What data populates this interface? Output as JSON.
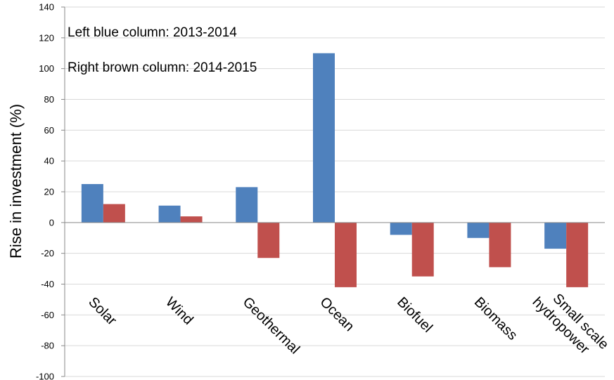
{
  "chart_data": {
    "type": "bar",
    "title": "",
    "xlabel": "",
    "ylabel": "Rise in investment (%)",
    "ylim": [
      -100,
      140
    ],
    "ytick_step": 20,
    "grid": true,
    "categories": [
      "Solar",
      "Wind",
      "Geothermal",
      "Ocean",
      "Biofuel",
      "Biomass",
      "Small scale hydropower"
    ],
    "series": [
      {
        "values": [
          25,
          11,
          23,
          110,
          -8,
          -10,
          -17
        ],
        "color": "#4F81BD"
      },
      {
        "values": [
          12,
          4,
          -23,
          -42,
          -35,
          -29,
          -42
        ],
        "color": "#C0504D"
      }
    ],
    "annotations": [
      "Left blue column: 2013-2014",
      "Right brown column: 2014-2015"
    ]
  }
}
